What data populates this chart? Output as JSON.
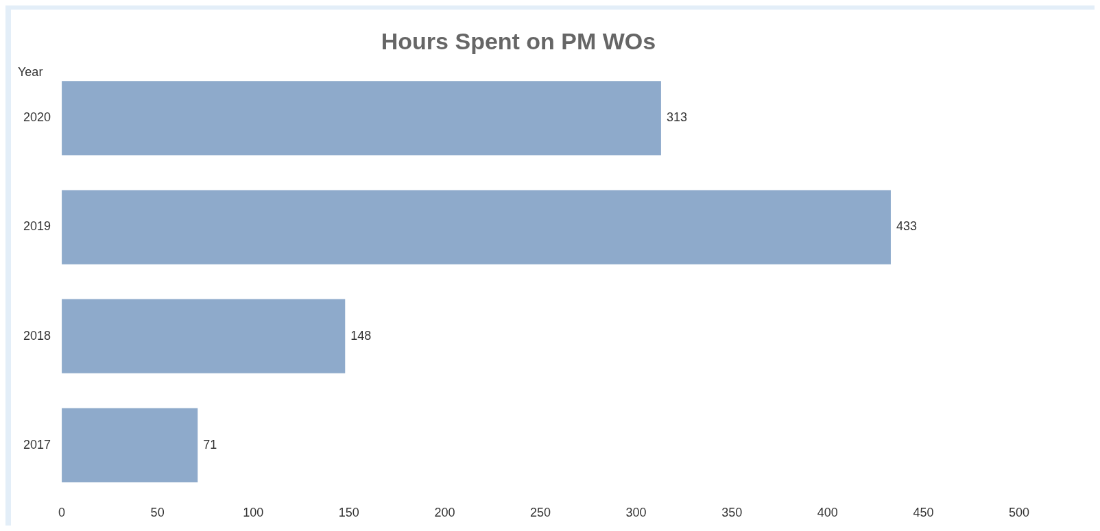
{
  "chart_data": {
    "type": "bar",
    "orientation": "horizontal",
    "title": "Hours Spent on PM WOs",
    "ylabel": "Year",
    "categories": [
      "2020",
      "2019",
      "2018",
      "2017"
    ],
    "values": [
      313,
      433,
      148,
      71
    ],
    "color": "#8eaacb",
    "xlim": [
      0,
      500
    ],
    "xticks": [
      0,
      50,
      100,
      150,
      200,
      250,
      300,
      350,
      400,
      450,
      500
    ],
    "grid": false,
    "legend": false,
    "data_labels": true
  }
}
